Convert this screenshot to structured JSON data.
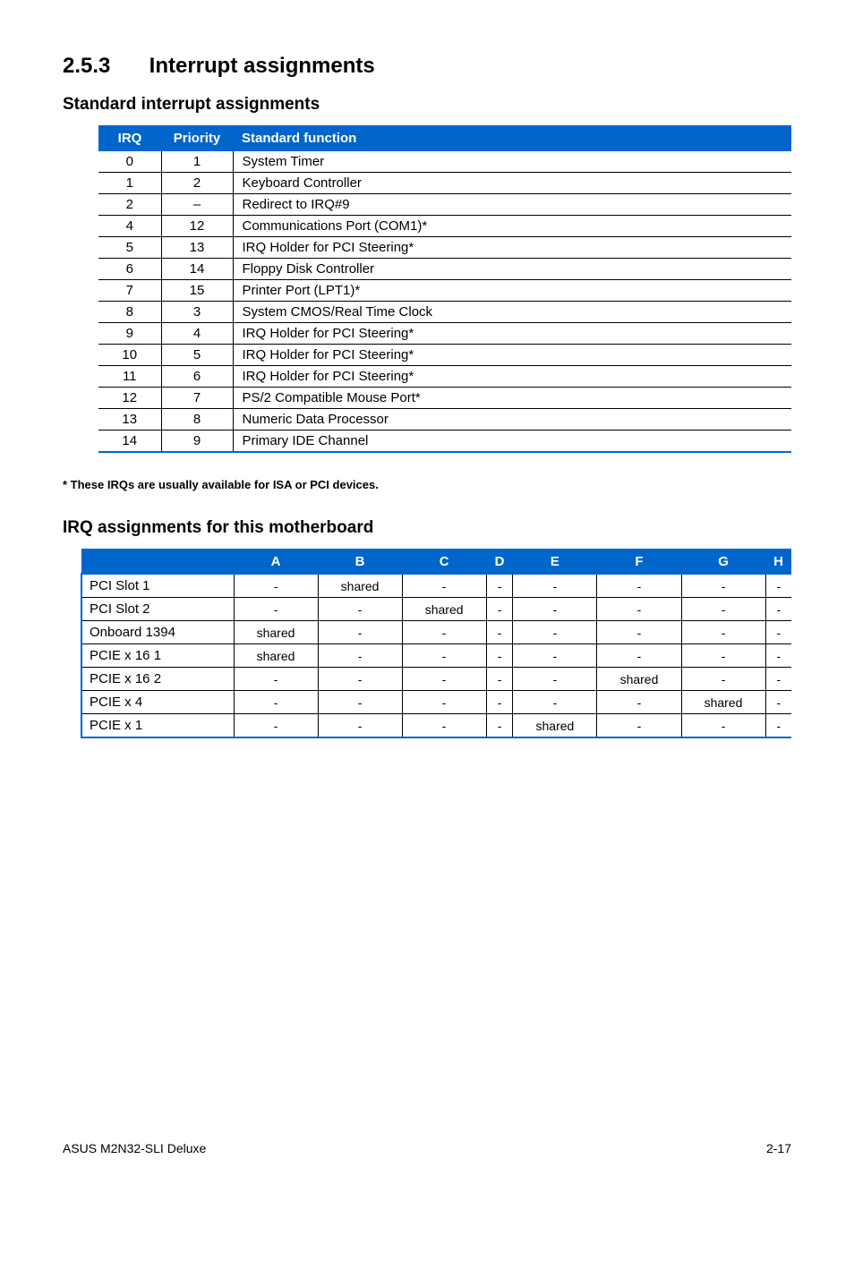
{
  "section": {
    "number": "2.5.3",
    "title": "Interrupt assignments"
  },
  "std_heading": "Standard interrupt assignments",
  "irq_headers": {
    "irq": "IRQ",
    "priority": "Priority",
    "func": "Standard function"
  },
  "irq_rows": [
    {
      "irq": "0",
      "pri": "1",
      "func": "System Timer"
    },
    {
      "irq": "1",
      "pri": "2",
      "func": "Keyboard Controller"
    },
    {
      "irq": "2",
      "pri": "–",
      "func": "Redirect to IRQ#9"
    },
    {
      "irq": "4",
      "pri": "12",
      "func": "Communications Port (COM1)*"
    },
    {
      "irq": "5",
      "pri": "13",
      "func": "IRQ Holder for PCI Steering*"
    },
    {
      "irq": "6",
      "pri": "14",
      "func": "Floppy Disk Controller"
    },
    {
      "irq": "7",
      "pri": "15",
      "func": "Printer Port (LPT1)*"
    },
    {
      "irq": "8",
      "pri": "3",
      "func": "System CMOS/Real Time Clock"
    },
    {
      "irq": "9",
      "pri": "4",
      "func": "IRQ Holder for PCI Steering*"
    },
    {
      "irq": "10",
      "pri": "5",
      "func": "IRQ Holder for PCI Steering*"
    },
    {
      "irq": "11",
      "pri": "6",
      "func": "IRQ Holder for PCI Steering*"
    },
    {
      "irq": "12",
      "pri": "7",
      "func": "PS/2 Compatible Mouse Port*"
    },
    {
      "irq": "13",
      "pri": "8",
      "func": "Numeric Data Processor"
    },
    {
      "irq": "14",
      "pri": "9",
      "func": "Primary IDE Channel"
    }
  ],
  "footnote": "* These IRQs are usually available for ISA or PCI devices.",
  "assign_heading": "IRQ assignments for this motherboard",
  "assign_cols": [
    "A",
    "B",
    "C",
    "D",
    "E",
    "F",
    "G",
    "H"
  ],
  "assign_rows": [
    {
      "label": "PCI Slot 1",
      "cells": [
        "-",
        "shared",
        "-",
        "-",
        "-",
        "-",
        "-",
        "-"
      ]
    },
    {
      "label": "PCI Slot 2",
      "cells": [
        "-",
        "-",
        "shared",
        "-",
        "-",
        "-",
        "-",
        "-"
      ]
    },
    {
      "label": "Onboard 1394",
      "cells": [
        "shared",
        "-",
        "-",
        "-",
        "-",
        "-",
        "-",
        "-"
      ]
    },
    {
      "label": "PCIE x 16 1",
      "cells": [
        "shared",
        "-",
        "-",
        "-",
        "-",
        "-",
        "-",
        "-"
      ]
    },
    {
      "label": "PCIE x 16 2",
      "cells": [
        "-",
        "-",
        "-",
        "-",
        "-",
        "shared",
        "-",
        "-"
      ]
    },
    {
      "label": "PCIE x 4",
      "cells": [
        "-",
        "-",
        "-",
        "-",
        "-",
        "-",
        "shared",
        "-"
      ]
    },
    {
      "label": "PCIE x 1",
      "cells": [
        "-",
        "-",
        "-",
        "-",
        "shared",
        "-",
        "-",
        "-"
      ]
    }
  ],
  "footer": {
    "left": "ASUS M2N32-SLI Deluxe",
    "right": "2-17"
  }
}
